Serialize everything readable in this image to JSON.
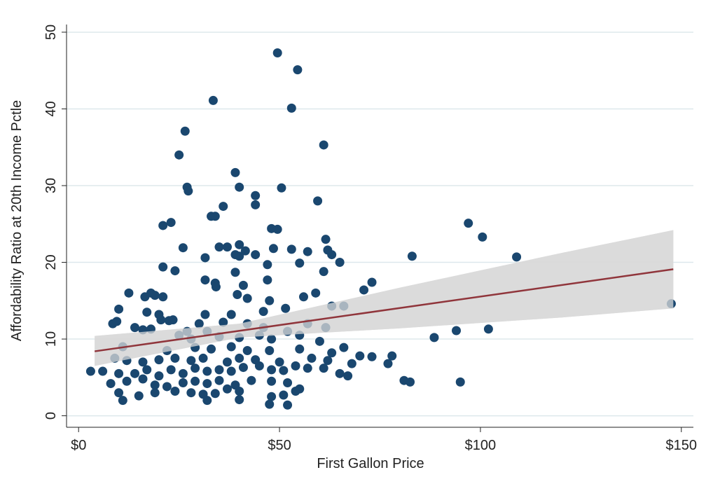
{
  "chart_data": {
    "type": "scatter",
    "xlabel": "First Gallon Price",
    "ylabel": "Affordability Ratio at 20th Income Pctle",
    "xlim": [
      -3,
      153
    ],
    "ylim": [
      -1.5,
      51
    ],
    "xticks": [
      {
        "value": 0,
        "label": "$0"
      },
      {
        "value": 50,
        "label": "$50"
      },
      {
        "value": 100,
        "label": "$100"
      },
      {
        "value": 150,
        "label": "$150"
      }
    ],
    "yticks": [
      0,
      10,
      20,
      30,
      40,
      50
    ],
    "grid": true,
    "color": "#1a476f",
    "x": [
      49.5,
      54.5,
      33.5,
      53,
      26.5,
      25,
      61,
      27,
      27.3,
      39,
      40,
      50.5,
      44,
      44,
      36,
      33,
      34,
      59.5,
      21,
      23,
      48,
      49.5,
      97,
      100.5,
      61.5,
      26,
      35,
      37,
      40,
      41.5,
      39,
      44,
      48.5,
      53,
      57,
      62,
      63,
      83,
      109,
      31.5,
      21,
      24,
      40,
      47,
      55,
      61,
      65,
      31.5,
      34,
      34.2,
      39,
      41,
      47,
      71,
      73,
      12.5,
      18,
      16.5,
      19,
      21,
      39.5,
      42,
      47.5,
      56,
      59,
      147.5,
      10,
      17,
      20,
      31.5,
      38,
      46,
      51.5,
      63,
      66,
      8.5,
      9.5,
      20.5,
      22.5,
      23.5,
      30,
      36,
      42,
      57,
      14,
      16,
      18,
      27,
      32,
      46,
      52,
      61.5,
      94,
      102,
      25,
      28,
      35,
      40,
      45,
      48,
      55,
      60,
      88.5,
      11,
      22,
      29,
      33,
      38,
      42,
      47.5,
      55,
      63,
      66,
      70,
      73,
      78,
      9,
      12,
      16,
      20,
      24,
      28,
      31,
      37,
      40,
      44,
      50,
      58,
      62,
      68,
      77,
      6,
      3,
      10,
      14,
      17,
      20,
      23,
      26,
      29,
      32,
      35,
      38,
      41,
      45,
      48,
      51,
      54,
      57,
      61,
      65,
      67,
      8,
      12,
      16,
      19,
      22,
      26,
      29,
      32,
      35,
      39,
      43,
      48,
      52,
      55,
      81,
      82.5,
      95,
      10,
      15,
      19,
      24,
      28,
      31,
      34,
      37,
      40,
      48,
      51,
      54,
      11,
      32,
      40,
      47.5,
      52
    ],
    "y": [
      47.3,
      45.1,
      41.1,
      40.1,
      37.1,
      34,
      35.3,
      29.8,
      29.3,
      31.7,
      29.8,
      29.7,
      28.7,
      27.5,
      27.3,
      26,
      26,
      28,
      24.8,
      25.2,
      24.4,
      24.3,
      25.1,
      23.3,
      23,
      21.9,
      22,
      22,
      22.3,
      21.5,
      21,
      21,
      21.8,
      21.7,
      21.4,
      21.6,
      21,
      20.8,
      20.7,
      20.6,
      19.4,
      18.9,
      20.8,
      19.7,
      19.9,
      18.8,
      20,
      17.7,
      17.3,
      16.8,
      18.7,
      17,
      17.7,
      16.4,
      17.4,
      16,
      16,
      15.5,
      15.7,
      15.5,
      15.8,
      15.3,
      15,
      15.5,
      16,
      14.6,
      13.9,
      13.5,
      13.2,
      13.2,
      13.2,
      13.6,
      14,
      14.3,
      14.3,
      12,
      12.3,
      12.5,
      12.4,
      12.5,
      12,
      12.2,
      12,
      12,
      11.5,
      11.2,
      11.3,
      11,
      11,
      11.5,
      11,
      11.5,
      11.1,
      11.3,
      10.5,
      10,
      10.3,
      10.2,
      10.5,
      10,
      10.5,
      9.7,
      10.2,
      9,
      8.5,
      8.9,
      8.7,
      9,
      8.5,
      8.5,
      8.7,
      8.2,
      8.9,
      7.8,
      7.7,
      7.8,
      7.5,
      7.2,
      7,
      7.3,
      7.5,
      7.2,
      7.5,
      7,
      7.5,
      7.3,
      7,
      7.5,
      7.2,
      6.8,
      6.8,
      5.8,
      5.8,
      5.5,
      5.5,
      6,
      5.2,
      6,
      5.5,
      6.2,
      5.8,
      6,
      5.8,
      6.3,
      6.5,
      6,
      5.9,
      6.5,
      6.2,
      6.2,
      5.5,
      5.2,
      4.2,
      4.5,
      4.8,
      4,
      3.8,
      4.3,
      4.5,
      4.2,
      4.6,
      4,
      4.6,
      4.5,
      4.3,
      3.5,
      4.6,
      4.4,
      4.4,
      3,
      2.6,
      3,
      3.2,
      3,
      2.8,
      2.9,
      3.5,
      3.2,
      2.5,
      2.7,
      3.2,
      2,
      2,
      2.1,
      1.5,
      1.4
    ],
    "ci": {
      "color": "#d9d9d9",
      "x": [
        4,
        40,
        80,
        120,
        148
      ],
      "upper": [
        10.4,
        12,
        16.7,
        21.2,
        24.2
      ],
      "lower": [
        6.5,
        10.2,
        11.4,
        12.8,
        14
      ]
    },
    "fit": {
      "color": "#90353b",
      "x": [
        4,
        148
      ],
      "y": [
        8.4,
        19.1
      ]
    }
  }
}
